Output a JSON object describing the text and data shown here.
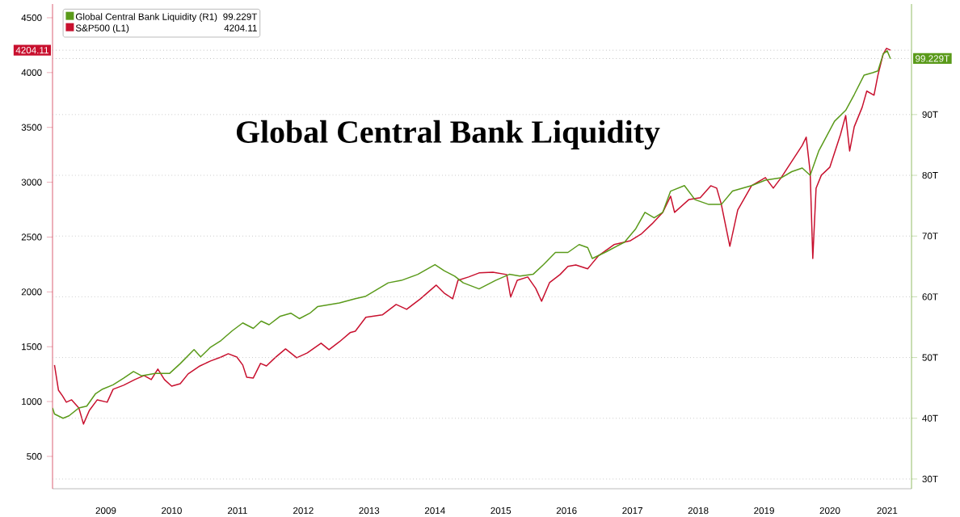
{
  "chart_data": {
    "type": "line",
    "title": "Global Central Bank Liquidity",
    "xlim": [
      2008.69,
      2021.74
    ],
    "ylim": [
      205,
      4625
    ],
    "y2lim": [
      28.4,
      108.2
    ],
    "xticks": [
      {
        "value": 2009.5,
        "label": "2009"
      },
      {
        "value": 2010.5,
        "label": "2010"
      },
      {
        "value": 2011.5,
        "label": "2011"
      },
      {
        "value": 2012.5,
        "label": "2012"
      },
      {
        "value": 2013.5,
        "label": "2013"
      },
      {
        "value": 2014.5,
        "label": "2014"
      },
      {
        "value": 2015.5,
        "label": "2015"
      },
      {
        "value": 2016.5,
        "label": "2016"
      },
      {
        "value": 2017.5,
        "label": "2017"
      },
      {
        "value": 2018.5,
        "label": "2018"
      },
      {
        "value": 2019.5,
        "label": "2019"
      },
      {
        "value": 2020.5,
        "label": "2020"
      },
      {
        "value": 2021.37,
        "label": "2021"
      }
    ],
    "yticks": [
      500,
      1000,
      1500,
      2000,
      2500,
      3000,
      3500,
      4000,
      4500
    ],
    "y2ticks": [
      {
        "value": 30,
        "label": "30T"
      },
      {
        "value": 40,
        "label": "40T"
      },
      {
        "value": 50,
        "label": "50T"
      },
      {
        "value": 60,
        "label": "60T"
      },
      {
        "value": 70,
        "label": "70T"
      },
      {
        "value": 80,
        "label": "80T"
      },
      {
        "value": 90,
        "label": "90T"
      }
    ],
    "grid": "y",
    "legend": "top left",
    "marker": "none",
    "line_style": "solid",
    "ref_lines": [
      {
        "axis": "y",
        "value": 4204.11,
        "label": "4204.11",
        "line_style": "dotted"
      },
      {
        "axis": "y2",
        "value": 99.229,
        "label": "99.229T",
        "line_style": "dotted"
      }
    ],
    "annotations": [
      "99.229T",
      "4204.11"
    ],
    "series": [
      {
        "name": "Global Central Bank Liquidity (R1)",
        "color": "#5a9a1a",
        "axis": "y2",
        "x": [
          2008.69,
          2008.72,
          2008.85,
          2008.94,
          2009.09,
          2009.21,
          2009.34,
          2009.45,
          2009.61,
          2009.77,
          2009.92,
          2010.04,
          2010.25,
          2010.47,
          2010.63,
          2010.84,
          2010.94,
          2011.09,
          2011.25,
          2011.42,
          2011.58,
          2011.74,
          2011.86,
          2011.98,
          2012.15,
          2012.31,
          2012.44,
          2012.6,
          2012.72,
          2013.05,
          2013.29,
          2013.45,
          2013.79,
          2013.99,
          2014.24,
          2014.5,
          2014.64,
          2014.8,
          2014.93,
          2015.17,
          2015.42,
          2015.63,
          2015.79,
          2015.99,
          2016.15,
          2016.33,
          2016.52,
          2016.69,
          2016.82,
          2016.89,
          2017.1,
          2017.38,
          2017.55,
          2017.69,
          2017.83,
          2017.96,
          2018.08,
          2018.29,
          2018.45,
          2018.66,
          2018.85,
          2019.02,
          2019.31,
          2019.52,
          2019.76,
          2019.92,
          2020.08,
          2020.2,
          2020.33,
          2020.57,
          2020.74,
          2020.87,
          2021.02,
          2021.15,
          2021.23,
          2021.31,
          2021.37,
          2021.42
        ],
        "values": [
          41.7,
          40.7,
          40.0,
          40.4,
          41.7,
          42.0,
          44.0,
          44.8,
          45.5,
          46.6,
          47.7,
          47.0,
          47.4,
          47.4,
          49.0,
          51.3,
          50.1,
          51.7,
          52.8,
          54.4,
          55.7,
          54.8,
          56.0,
          55.4,
          56.8,
          57.3,
          56.4,
          57.3,
          58.4,
          59.0,
          59.7,
          60.1,
          62.3,
          62.7,
          63.7,
          65.3,
          64.3,
          63.4,
          62.3,
          61.3,
          62.7,
          63.7,
          63.4,
          63.7,
          65.3,
          67.3,
          67.3,
          68.6,
          68.1,
          66.3,
          67.4,
          69.0,
          71.2,
          73.9,
          73.0,
          73.9,
          77.4,
          78.3,
          76.0,
          75.2,
          75.2,
          77.4,
          78.3,
          79.2,
          79.6,
          80.6,
          81.2,
          80.0,
          84.0,
          88.9,
          90.7,
          93.3,
          96.5,
          96.9,
          97.2,
          100.0,
          100.5,
          99.2
        ]
      },
      {
        "name": "S&P500 (L1)",
        "color": "#c8102e",
        "x": [
          2008.72,
          2008.78,
          2008.84,
          2008.9,
          2008.98,
          2009.09,
          2009.16,
          2009.25,
          2009.37,
          2009.52,
          2009.61,
          2009.77,
          2009.94,
          2010.08,
          2010.19,
          2010.29,
          2010.39,
          2010.5,
          2010.63,
          2010.75,
          2010.93,
          2011.09,
          2011.25,
          2011.36,
          2011.49,
          2011.58,
          2011.64,
          2011.74,
          2011.85,
          2011.94,
          2012.07,
          2012.23,
          2012.4,
          2012.56,
          2012.77,
          2012.89,
          2013.05,
          2013.21,
          2013.29,
          2013.45,
          2013.7,
          2013.91,
          2014.07,
          2014.28,
          2014.52,
          2014.64,
          2014.77,
          2014.85,
          2015.01,
          2015.17,
          2015.38,
          2015.59,
          2015.65,
          2015.75,
          2015.91,
          2016.03,
          2016.12,
          2016.24,
          2016.4,
          2016.52,
          2016.64,
          2016.82,
          2016.88,
          2016.98,
          2017.22,
          2017.47,
          2017.63,
          2017.8,
          2017.96,
          2018.08,
          2018.14,
          2018.36,
          2018.53,
          2018.69,
          2018.78,
          2018.85,
          2018.98,
          2019.1,
          2019.31,
          2019.52,
          2019.64,
          2019.76,
          2019.92,
          2020.08,
          2020.14,
          2020.2,
          2020.24,
          2020.29,
          2020.37,
          2020.5,
          2020.66,
          2020.74,
          2020.8,
          2020.87,
          2020.99,
          2021.06,
          2021.17,
          2021.23,
          2021.31,
          2021.36,
          2021.42
        ],
        "values": [
          1333,
          1104,
          1053,
          994,
          1016,
          942,
          795,
          920,
          1016,
          994,
          1112,
          1149,
          1200,
          1237,
          1200,
          1296,
          1200,
          1141,
          1163,
          1252,
          1325,
          1370,
          1406,
          1436,
          1406,
          1333,
          1222,
          1215,
          1348,
          1325,
          1399,
          1480,
          1399,
          1443,
          1532,
          1473,
          1546,
          1628,
          1642,
          1768,
          1790,
          1885,
          1841,
          1937,
          2062,
          1989,
          1937,
          2106,
          2136,
          2173,
          2180,
          2158,
          1952,
          2106,
          2136,
          2033,
          1915,
          2084,
          2158,
          2232,
          2246,
          2210,
          2254,
          2327,
          2431,
          2467,
          2526,
          2622,
          2725,
          2873,
          2725,
          2843,
          2858,
          2968,
          2946,
          2799,
          2416,
          2747,
          2968,
          3042,
          2946,
          3042,
          3190,
          3337,
          3411,
          3094,
          2305,
          2946,
          3064,
          3138,
          3433,
          3609,
          3285,
          3506,
          3683,
          3831,
          3794,
          3978,
          4169,
          4221,
          4204
        ]
      }
    ]
  }
}
